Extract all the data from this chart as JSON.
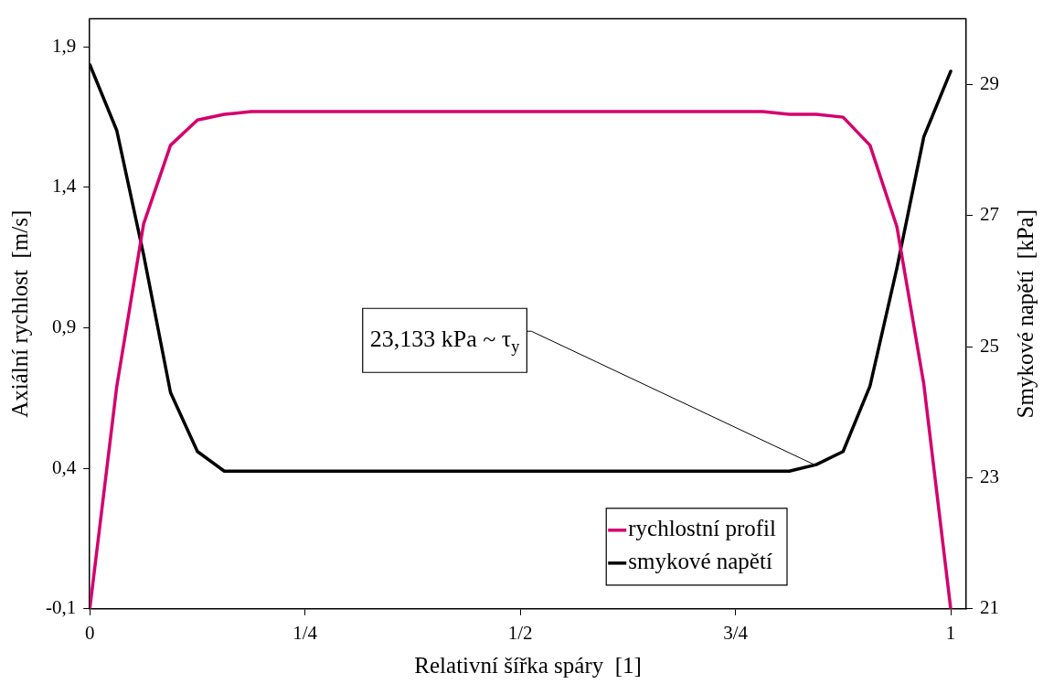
{
  "chart_data": {
    "type": "line",
    "xlabel": "Relativní šířka spáry  [1]",
    "ylabel": "Axiální rychlost  [m/s]",
    "y2label": "Smykové napětí  [kPa]",
    "x": [
      0,
      0.03125,
      0.0625,
      0.09375,
      0.125,
      0.15625,
      0.1875,
      0.21875,
      0.25,
      0.28125,
      0.3125,
      0.34375,
      0.375,
      0.40625,
      0.4375,
      0.46875,
      0.5,
      0.53125,
      0.5625,
      0.59375,
      0.625,
      0.65625,
      0.6875,
      0.71875,
      0.75,
      0.78125,
      0.8125,
      0.84375,
      0.875,
      0.90625,
      0.9375,
      0.96875,
      1
    ],
    "series": [
      {
        "name": "rychlostní profil",
        "color": "#d4006e",
        "values": [
          -0.1,
          0.69,
          1.27,
          1.55,
          1.64,
          1.66,
          1.67,
          1.67,
          1.67,
          1.67,
          1.67,
          1.67,
          1.67,
          1.67,
          1.67,
          1.67,
          1.67,
          1.67,
          1.67,
          1.67,
          1.67,
          1.67,
          1.67,
          1.67,
          1.67,
          1.67,
          1.66,
          1.66,
          1.65,
          1.55,
          1.26,
          0.7,
          -0.1
        ]
      },
      {
        "name": "smykové napětí",
        "color": "#000000",
        "axis": "y2",
        "values": [
          29.3,
          28.3,
          26.4,
          24.3,
          23.4,
          23.1,
          23.1,
          23.1,
          23.1,
          23.1,
          23.1,
          23.1,
          23.1,
          23.1,
          23.1,
          23.1,
          23.1,
          23.1,
          23.1,
          23.1,
          23.1,
          23.1,
          23.1,
          23.1,
          23.1,
          23.1,
          23.1,
          23.2,
          23.4,
          24.4,
          26.2,
          28.2,
          29.2
        ]
      }
    ],
    "xlim": [
      0,
      1.018
    ],
    "xticks": [
      0,
      {
        "value": 0.25,
        "label": "1/4"
      },
      {
        "value": 0.5,
        "label": "1/2"
      },
      {
        "value": 0.75,
        "label": "3/4"
      },
      1
    ],
    "ylim": [
      -0.1,
      2.0
    ],
    "yticks": [
      {
        "value": -0.1,
        "label": "-0,1"
      },
      {
        "value": 0.4,
        "label": "0,4"
      },
      {
        "value": 0.9,
        "label": "0,9"
      },
      {
        "value": 1.4,
        "label": "1,4"
      },
      {
        "value": 1.9,
        "label": "1,9"
      }
    ],
    "y2lim": [
      21,
      30
    ],
    "y2ticks": [
      21,
      23,
      25,
      27,
      29
    ],
    "annotations": [
      {
        "text": "23,133 kPa ~ τ$_{y}$",
        "x": 0.84375,
        "y": 0.41
      }
    ],
    "legend": "bottom right",
    "grid": false,
    "marker": "none",
    "line_style": "solid"
  }
}
